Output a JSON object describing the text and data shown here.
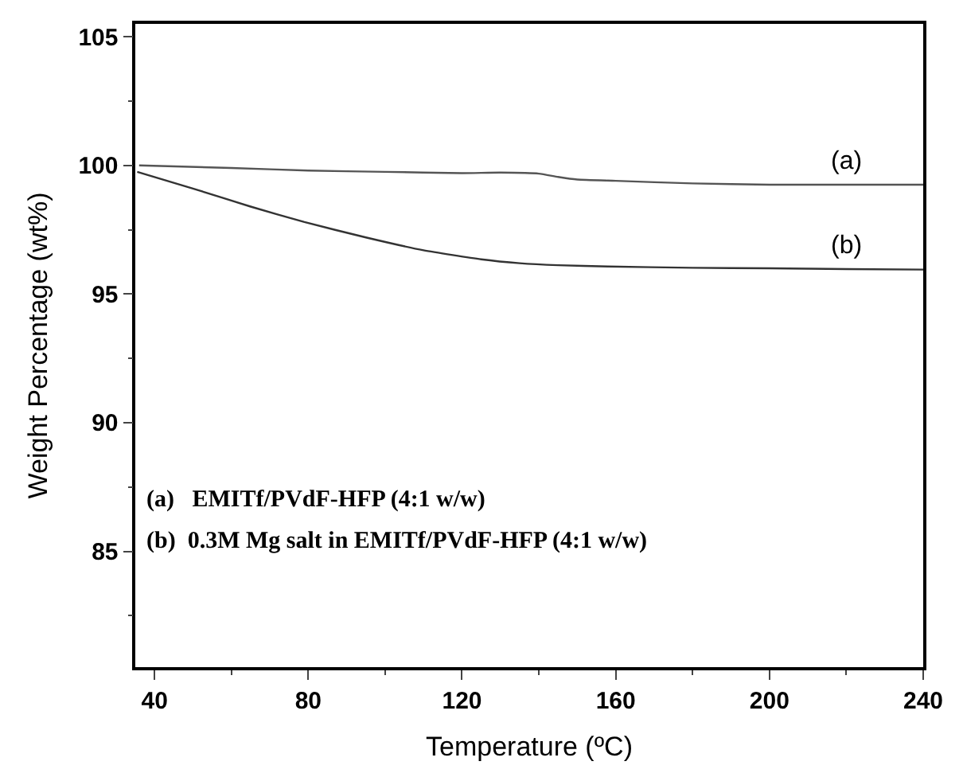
{
  "chart_data": {
    "type": "line",
    "xlabel": "Temperature (ºC)",
    "ylabel": "Weight Percentage (wt%)",
    "xlim": [
      35,
      240
    ],
    "ylim": [
      80.5,
      105.5
    ],
    "xticks": [
      40,
      80,
      120,
      160,
      200,
      240
    ],
    "yticks": [
      85,
      90,
      95,
      100,
      105
    ],
    "series": [
      {
        "color": "#555555",
        "x": [
          36,
          60,
          80,
          100,
          120,
          130,
          140,
          145,
          150,
          160,
          180,
          200,
          220,
          240
        ],
        "values": [
          100.0,
          99.9,
          99.8,
          99.75,
          99.7,
          99.72,
          99.68,
          99.55,
          99.45,
          99.4,
          99.3,
          99.25,
          99.25,
          99.25
        ]
      },
      {
        "color": "#333333",
        "x": [
          35.5,
          50,
          65,
          79,
          95,
          110,
          125,
          135,
          145,
          158,
          180,
          200,
          220,
          240
        ],
        "values": [
          99.75,
          99.1,
          98.4,
          97.8,
          97.2,
          96.7,
          96.35,
          96.2,
          96.12,
          96.07,
          96.02,
          96.0,
          95.97,
          95.95
        ]
      }
    ],
    "annotations": [
      {
        "text": "(a)",
        "x": 220,
        "y": 99.25
      },
      {
        "text": "(b)",
        "x": 220,
        "y": 95.97
      },
      "(a)   EMITf/PVdF-HFP (4:1 w/w)",
      "(b)  0.3M Mg salt in EMITf/PVdF-HFP (4:1 w/w)"
    ]
  }
}
